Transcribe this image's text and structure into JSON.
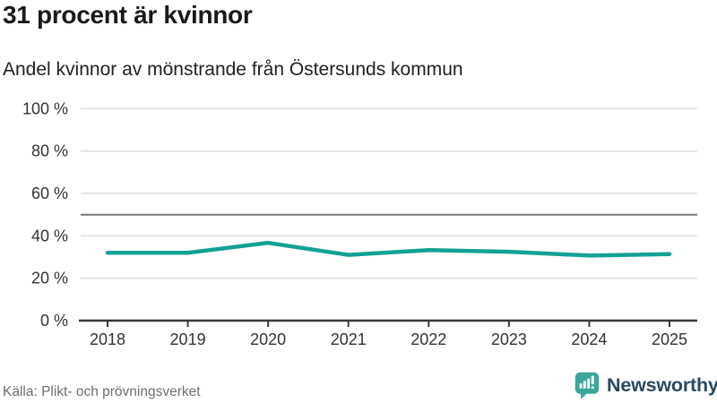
{
  "header": {
    "title": "31 procent är kvinnor",
    "subtitle": "Andel kvinnor av mönstrande från Östersunds kommun"
  },
  "chart_data": {
    "type": "line",
    "title": "31 procent är kvinnor",
    "subtitle": "Andel kvinnor av mönstrande från Östersunds kommun",
    "x": [
      2018,
      2019,
      2020,
      2021,
      2022,
      2023,
      2024,
      2025
    ],
    "values": [
      32,
      32,
      36.7,
      31,
      33.3,
      32.5,
      30.7,
      31.4
    ],
    "xlabel": "",
    "ylabel": "",
    "ylim": [
      0,
      100
    ],
    "yticks": [
      0,
      20,
      40,
      60,
      80,
      100
    ],
    "ytick_suffix": " %",
    "grid": true,
    "legend": "none",
    "line_color": "#14a196",
    "reference_line": {
      "value": 50,
      "color": "#757575"
    }
  },
  "footer": {
    "source": "Källa: Plikt- och prövningsverket",
    "brand": "Newsworthy"
  },
  "colors": {
    "accent": "#14a196",
    "brand_mark": "#3aa79b",
    "brand_text": "#2a4a60",
    "title_text": "#1a1a1a",
    "axis_text": "#333333",
    "grid_line": "#e4e4e4",
    "reference_line": "#757575",
    "source_text": "#6e6e73"
  }
}
